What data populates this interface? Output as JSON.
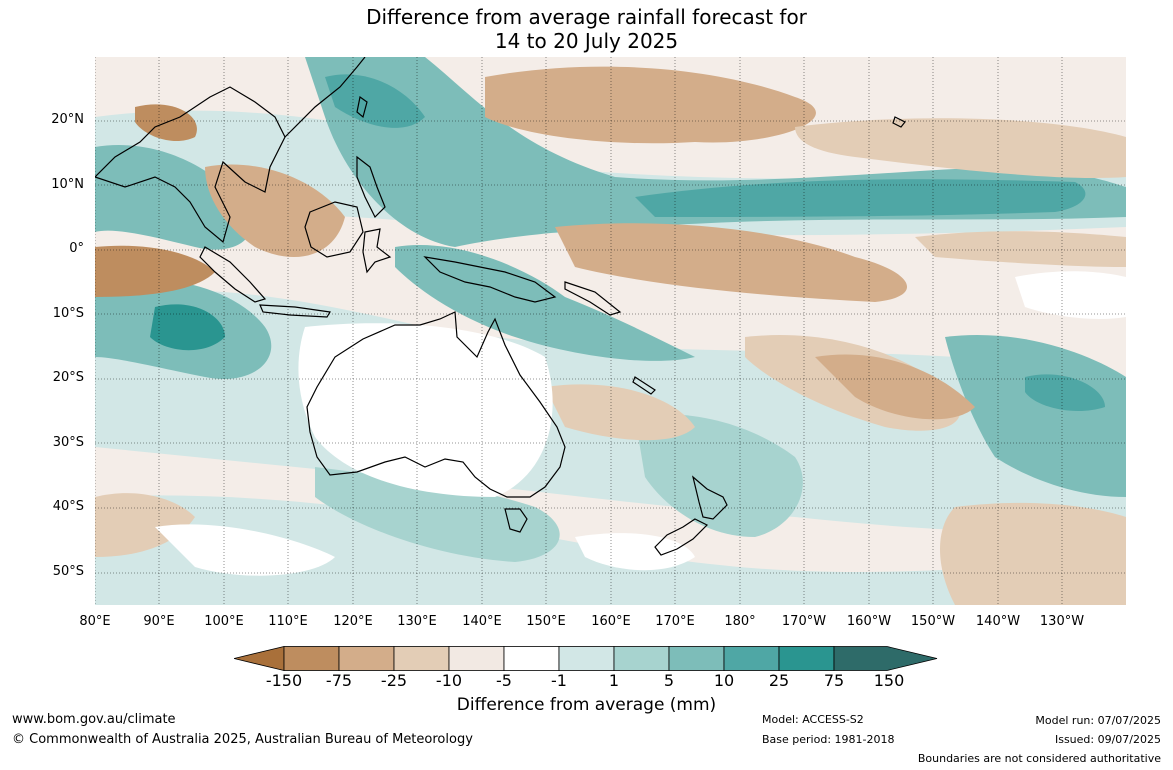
{
  "title_line1": "Difference from average rainfall forecast for",
  "title_line2": "14 to 20 July 2025",
  "lat_labels": [
    "20°N",
    "10°N",
    "0°",
    "10°S",
    "20°S",
    "30°S",
    "40°S",
    "50°S"
  ],
  "lon_labels": [
    "80°E",
    "90°E",
    "100°E",
    "110°E",
    "120°E",
    "130°E",
    "140°E",
    "150°E",
    "160°E",
    "170°E",
    "180°",
    "170°W",
    "160°W",
    "150°W",
    "140°W",
    "130°W"
  ],
  "colorbar": {
    "ticks": [
      "-150",
      "-75",
      "-25",
      "-10",
      "-5",
      "-1",
      "1",
      "5",
      "10",
      "25",
      "75",
      "150"
    ],
    "colors": [
      "#a9703a",
      "#be8d5f",
      "#d3ad8a",
      "#e3cdb6",
      "#f2e9e3",
      "#ffffff",
      "#d2e7e6",
      "#a7d3cf",
      "#7dbdb9",
      "#4fa7a5",
      "#2a9590",
      "#2e6b69"
    ],
    "title": "Difference from average (mm)"
  },
  "footer": {
    "website": "www.bom.gov.au/climate",
    "copyright": "© Commonwealth of Australia 2025, Australian Bureau of Meteorology",
    "model": "Model: ACCESS-S2",
    "base_period": "Base period: 1981-2018",
    "model_run": "Model run: 07/07/2025",
    "issued": "Issued: 09/07/2025",
    "disclaimer": "Boundaries are not considered authoritative"
  }
}
